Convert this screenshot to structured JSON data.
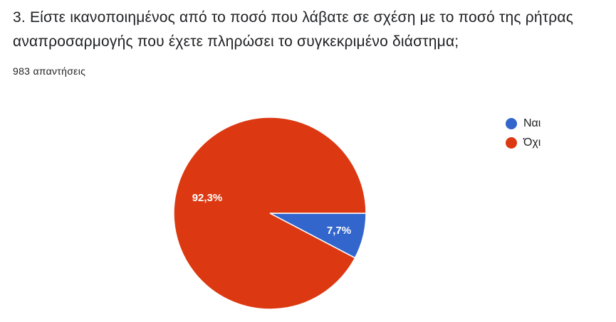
{
  "question": {
    "title": "3. Είστε ικανοποιημένος από το ποσό που λάβατε σε σχέση με το ποσό της ρήτρας αναπροσαρμογής που έχετε πληρώσει το συγκεκριμένο διάστημα;",
    "response_count": "983 απαντήσεις"
  },
  "chart_data": {
    "type": "pie",
    "title": "",
    "slices": [
      {
        "name": "Ναι",
        "value": 7.7,
        "label": "7,7%",
        "color": "#3366cc"
      },
      {
        "name": "Όχι",
        "value": 92.3,
        "label": "92,3%",
        "color": "#dc3912"
      }
    ],
    "legend_position": "right"
  }
}
